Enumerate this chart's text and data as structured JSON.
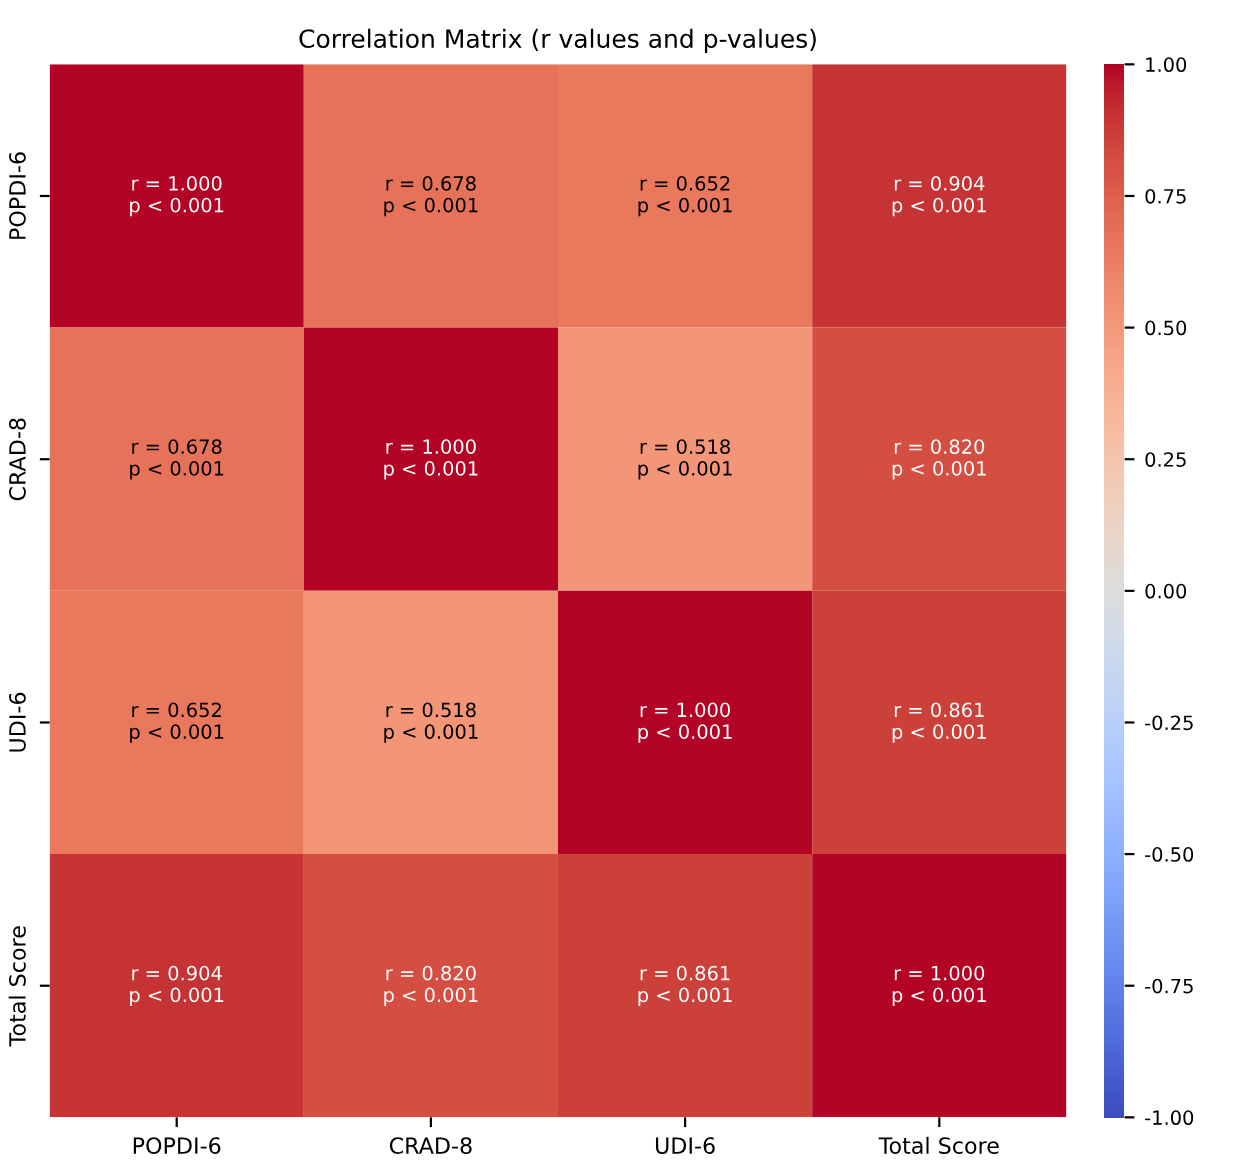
{
  "chart_data": {
    "type": "heatmap",
    "title": "Correlation Matrix (r values and p-values)",
    "categories": [
      "POPDI-6",
      "CRAD-8",
      "UDI-6",
      "Total Score"
    ],
    "y_categories": [
      "POPDI-6",
      "CRAD-8",
      "UDI-6",
      "Total Score"
    ],
    "cells": [
      [
        1.0,
        0.678,
        0.652,
        0.904
      ],
      [
        0.678,
        1.0,
        0.518,
        0.82
      ],
      [
        0.652,
        0.518,
        1.0,
        0.861
      ],
      [
        0.904,
        0.82,
        0.861,
        1.0
      ]
    ],
    "cell_labels": [
      [
        "r = 1.000\np < 0.001",
        "r = 0.678\np < 0.001",
        "r = 0.652\np < 0.001",
        "r = 0.904\np < 0.001"
      ],
      [
        "r = 0.678\np < 0.001",
        "r = 1.000\np < 0.001",
        "r = 0.518\np < 0.001",
        "r = 0.820\np < 0.001"
      ],
      [
        "r = 0.652\np < 0.001",
        "r = 0.518\np < 0.001",
        "r = 1.000\np < 0.001",
        "r = 0.861\np < 0.001"
      ],
      [
        "r = 0.904\np < 0.001",
        "r = 0.820\np < 0.001",
        "r = 0.861\np < 0.001",
        "r = 1.000\np < 0.001"
      ]
    ],
    "clim": [
      -1,
      1
    ],
    "cticks": [
      {
        "value": -1,
        "label": "-1.00"
      },
      {
        "value": -0.75,
        "label": "-0.75"
      },
      {
        "value": -0.5,
        "label": "-0.50"
      },
      {
        "value": -0.25,
        "label": "-0.25"
      },
      {
        "value": 0,
        "label": "0.00"
      },
      {
        "value": 0.25,
        "label": "0.25"
      },
      {
        "value": 0.5,
        "label": "0.50"
      },
      {
        "value": 0.75,
        "label": "0.75"
      },
      {
        "value": 1,
        "label": "1.00"
      }
    ]
  }
}
